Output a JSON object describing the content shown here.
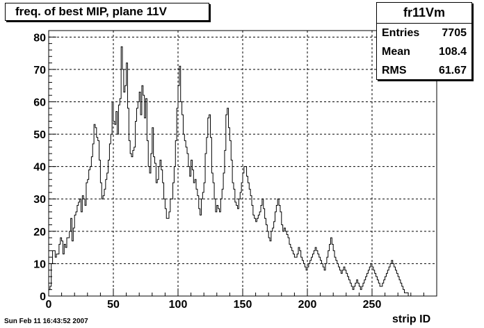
{
  "title": "freq. of best MIP, plane 11V",
  "stats": {
    "name": "fr11Vm",
    "entries_label": "Entries",
    "entries": "7705",
    "mean_label": "Mean",
    "mean": "108.4",
    "rms_label": "RMS",
    "rms": "61.67"
  },
  "footer": {
    "date": "Sun Feb 11 16:43:52 2007"
  },
  "chart_data": {
    "type": "bar",
    "title": "freq. of best MIP, plane 11V",
    "xlabel": "strip ID",
    "ylabel": "",
    "xlim": [
      0,
      300
    ],
    "ylim": [
      0,
      82
    ],
    "xticks": [
      0,
      50,
      100,
      150,
      200,
      250
    ],
    "yticks": [
      0,
      10,
      20,
      30,
      40,
      50,
      60,
      70,
      80
    ],
    "grid": true,
    "bin_width": 1,
    "bin_start": 0,
    "values": [
      2,
      3,
      10,
      14,
      14,
      12,
      13,
      13,
      16,
      18,
      17,
      13,
      16,
      15,
      18,
      18,
      20,
      24,
      17,
      21,
      25,
      26,
      28,
      29,
      30,
      26,
      31,
      30,
      28,
      35,
      36,
      39,
      40,
      43,
      47,
      53,
      52,
      49,
      48,
      42,
      35,
      30,
      31,
      33,
      36,
      38,
      42,
      47,
      50,
      60,
      54,
      53,
      57,
      50,
      59,
      61,
      77,
      70,
      63,
      65,
      72,
      58,
      48,
      44,
      43,
      45,
      46,
      54,
      58,
      60,
      63,
      56,
      65,
      62,
      55,
      61,
      48,
      40,
      38,
      44,
      52,
      43,
      41,
      35,
      36,
      40,
      42,
      39,
      35,
      30,
      27,
      24,
      24,
      26,
      30,
      30,
      35,
      40,
      48,
      58,
      65,
      71,
      60,
      56,
      50,
      48,
      46,
      44,
      40,
      37,
      42,
      39,
      35,
      36,
      33,
      31,
      27,
      25,
      30,
      32,
      35,
      44,
      49,
      55,
      56,
      49,
      38,
      35,
      30,
      26,
      28,
      27,
      26,
      30,
      33,
      38,
      45,
      56,
      58,
      52,
      48,
      42,
      35,
      33,
      29,
      28,
      27,
      30,
      32,
      35,
      38,
      40,
      40,
      37,
      35,
      33,
      31,
      28,
      25,
      24,
      23,
      24,
      25,
      26,
      28,
      30,
      27,
      24,
      22,
      20,
      18,
      17,
      20,
      21,
      23,
      26,
      28,
      30,
      28,
      26,
      22,
      20,
      21,
      20,
      19,
      18,
      16,
      15,
      14,
      13,
      12,
      12,
      13,
      15,
      14,
      12,
      11,
      10,
      9,
      8,
      9,
      10,
      11,
      12,
      13,
      14,
      15,
      14,
      13,
      12,
      11,
      10,
      9,
      8,
      10,
      12,
      14,
      16,
      18,
      16,
      14,
      12,
      11,
      10,
      9,
      8,
      7,
      8,
      9,
      8,
      7,
      6,
      5,
      4,
      3,
      2,
      3,
      4,
      5,
      4,
      3,
      2,
      3,
      4,
      5,
      6,
      7,
      8,
      9,
      10,
      9,
      8,
      7,
      6,
      5,
      4,
      3,
      3,
      4,
      5,
      6,
      7,
      8,
      9,
      10,
      11,
      10,
      9,
      8,
      7,
      6,
      5,
      4,
      3,
      2,
      1,
      1,
      1,
      0,
      0,
      0,
      0,
      0
    ]
  }
}
